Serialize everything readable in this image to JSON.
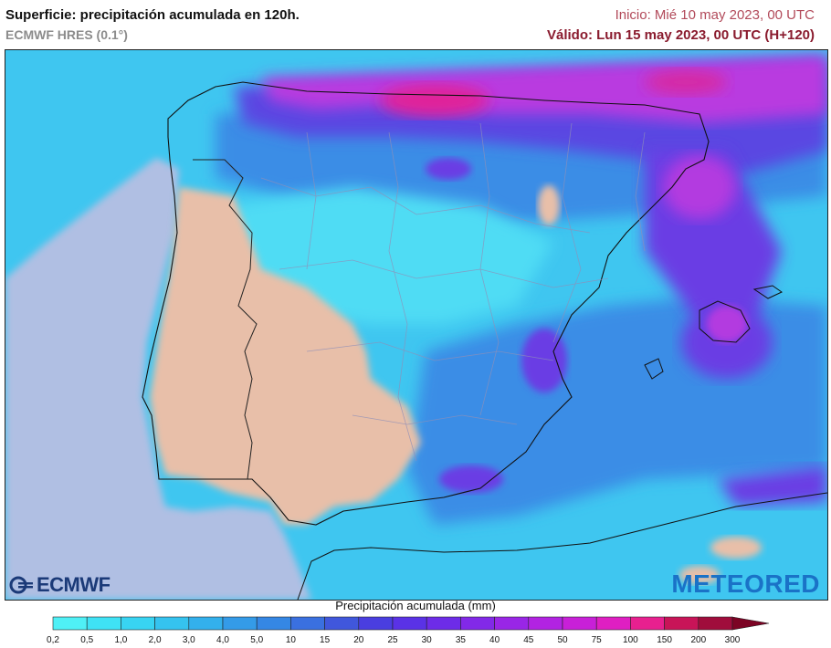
{
  "header": {
    "title": "Superficie: precipitación acumulada en 120h.",
    "subtitle": "ECMWF HRES (0.1°)",
    "init": "Inicio: Mié 10 may 2023, 00 UTC",
    "valid": "Válido: Lun 15 may 2023, 00 UTC (H+120)"
  },
  "logos": {
    "left": "ECMWF",
    "right": "METEORED"
  },
  "legend": {
    "title": "Precipitación acumulada (mm)",
    "ticks": [
      "0,2",
      "0,5",
      "1,0",
      "2,0",
      "3,0",
      "4,0",
      "5,0",
      "10",
      "15",
      "20",
      "25",
      "30",
      "35",
      "40",
      "45",
      "50",
      "75",
      "100",
      "150",
      "200",
      "300"
    ],
    "colors": [
      "#4ff0f6",
      "#3fe2f5",
      "#38d4f2",
      "#35c3ef",
      "#33b0ec",
      "#349be8",
      "#3587e4",
      "#3a70e0",
      "#4057dc",
      "#4a3ee0",
      "#5a32e6",
      "#6d2ce8",
      "#8229e8",
      "#9926e6",
      "#b223e2",
      "#c820d8",
      "#df1fc2",
      "#e8208f",
      "#c81458",
      "#a00d3c",
      "#7c0424"
    ]
  },
  "map": {
    "colors": {
      "sea": "#b0bfe3",
      "land_dry": "#e8bfa9",
      "light": "#48d8f2",
      "mid": "#3a9ce8",
      "heavy": "#5a46e2",
      "extreme": "#c23adf",
      "peak": "#e0209a"
    }
  }
}
